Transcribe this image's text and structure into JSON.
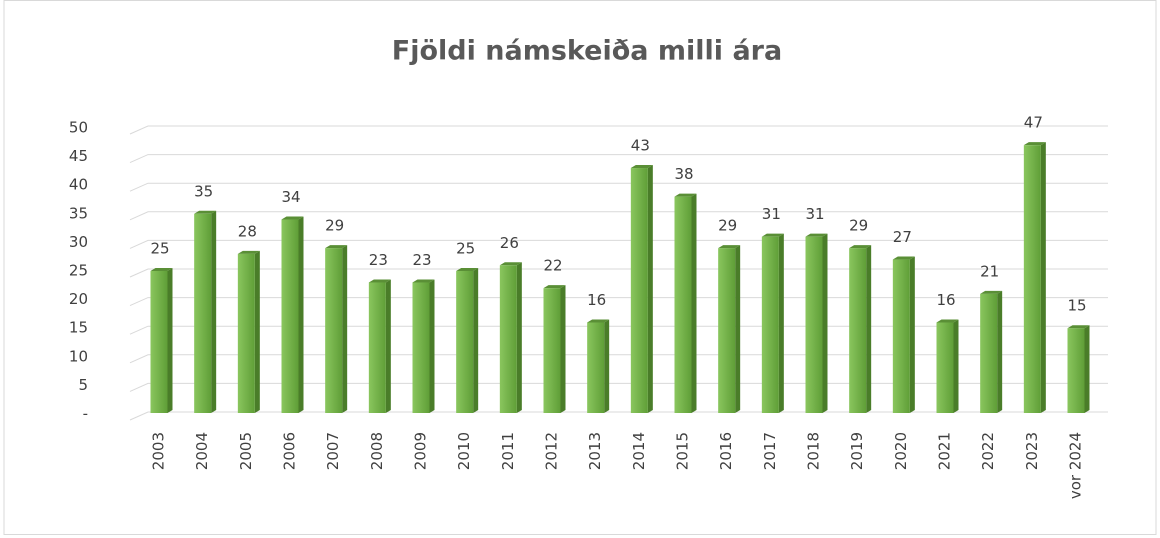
{
  "chart_data": {
    "type": "bar",
    "title": "Fjöldi námskeiða  milli ára",
    "categories": [
      "2003",
      "2004",
      "2005",
      "2006",
      "2007",
      "2008",
      "2009",
      "2010",
      "2011",
      "2012",
      "2013",
      "2014",
      "2015",
      "2016",
      "2017",
      "2018",
      "2019",
      "2020",
      "2021",
      "2022",
      "2023",
      "vor 2024"
    ],
    "values": [
      25,
      35,
      28,
      34,
      29,
      23,
      23,
      25,
      26,
      22,
      16,
      43,
      38,
      29,
      31,
      31,
      29,
      27,
      16,
      21,
      47,
      15
    ],
    "color": "#70ad47",
    "ylim": [
      0,
      50
    ],
    "yticks": [
      {
        "value": 0,
        "label": "-"
      },
      5,
      10,
      15,
      20,
      25,
      30,
      35,
      40,
      45,
      50
    ],
    "grid": true
  }
}
